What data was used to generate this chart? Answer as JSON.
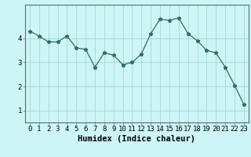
{
  "x": [
    0,
    1,
    2,
    3,
    4,
    5,
    6,
    7,
    8,
    9,
    10,
    11,
    12,
    13,
    14,
    15,
    16,
    17,
    18,
    19,
    20,
    21,
    22,
    23
  ],
  "y": [
    4.3,
    4.1,
    3.85,
    3.85,
    4.1,
    3.6,
    3.55,
    2.8,
    3.4,
    3.3,
    2.9,
    3.0,
    3.35,
    4.2,
    4.8,
    4.75,
    4.85,
    4.2,
    3.9,
    3.5,
    3.4,
    2.8,
    2.05,
    1.25
  ],
  "line_color": "#2e6e60",
  "marker": "*",
  "marker_size": 3.5,
  "bg_color": "#cef5f5",
  "grid_color": "#aadada",
  "xlabel": "Humidex (Indice chaleur)",
  "xlim": [
    -0.5,
    23.5
  ],
  "ylim": [
    0.5,
    5.4
  ],
  "yticks": [
    1,
    2,
    3,
    4
  ],
  "xticks": [
    0,
    1,
    2,
    3,
    4,
    5,
    6,
    7,
    8,
    9,
    10,
    11,
    12,
    13,
    14,
    15,
    16,
    17,
    18,
    19,
    20,
    21,
    22,
    23
  ],
  "xlabel_fontsize": 7.5,
  "tick_fontsize": 6.5,
  "ytick_label_yoffset": 5
}
